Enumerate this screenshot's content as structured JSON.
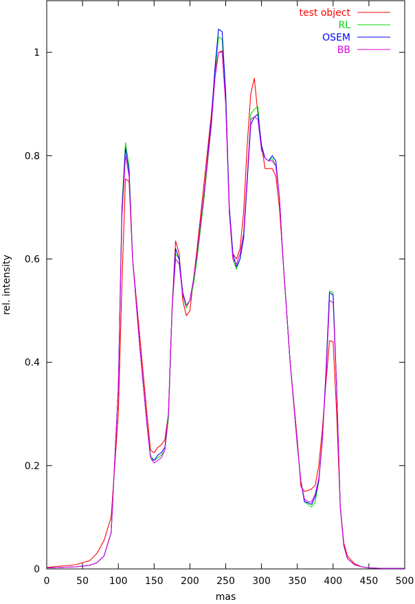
{
  "chart_data": {
    "type": "line",
    "title": "",
    "xlabel": "mas",
    "ylabel": "rel. intensity",
    "xlim": [
      0,
      500
    ],
    "ylim": [
      0,
      1.1
    ],
    "xticks": [
      0,
      50,
      100,
      150,
      200,
      250,
      300,
      350,
      400,
      450,
      500
    ],
    "yticks": [
      0,
      0.2,
      0.4,
      0.6,
      0.8,
      1
    ],
    "ytick_labels": [
      "0",
      "0.2",
      "0.4",
      "0.6",
      "0.8",
      "1"
    ],
    "grid": false,
    "legend_position": "top-right",
    "series": [
      {
        "name": "test object",
        "color": "#ff0000",
        "x": [
          0,
          40,
          60,
          70,
          80,
          90,
          100,
          105,
          110,
          115,
          120,
          130,
          140,
          145,
          150,
          155,
          160,
          165,
          170,
          175,
          180,
          185,
          190,
          195,
          200,
          205,
          210,
          220,
          230,
          235,
          240,
          245,
          250,
          255,
          260,
          265,
          270,
          275,
          280,
          285,
          290,
          295,
          300,
          305,
          310,
          315,
          320,
          325,
          330,
          340,
          350,
          355,
          360,
          365,
          370,
          375,
          380,
          385,
          390,
          395,
          400,
          405,
          410,
          415,
          420,
          430,
          440,
          450,
          470,
          500
        ],
        "y": [
          0.003,
          0.008,
          0.016,
          0.03,
          0.055,
          0.1,
          0.3,
          0.55,
          0.755,
          0.75,
          0.6,
          0.45,
          0.3,
          0.23,
          0.225,
          0.235,
          0.24,
          0.25,
          0.3,
          0.5,
          0.635,
          0.61,
          0.52,
          0.49,
          0.5,
          0.56,
          0.62,
          0.75,
          0.88,
          0.96,
          1.0,
          1.003,
          0.9,
          0.7,
          0.61,
          0.6,
          0.62,
          0.69,
          0.82,
          0.92,
          0.95,
          0.88,
          0.82,
          0.775,
          0.775,
          0.775,
          0.76,
          0.7,
          0.6,
          0.4,
          0.25,
          0.16,
          0.15,
          0.152,
          0.155,
          0.162,
          0.2,
          0.27,
          0.36,
          0.442,
          0.44,
          0.3,
          0.12,
          0.05,
          0.025,
          0.01,
          0.004,
          0.002,
          0.001,
          0.001
        ]
      },
      {
        "name": "RL",
        "color": "#00dd00",
        "x": [
          0,
          40,
          60,
          70,
          80,
          90,
          100,
          105,
          110,
          115,
          120,
          130,
          140,
          145,
          150,
          155,
          160,
          165,
          170,
          175,
          180,
          185,
          190,
          195,
          200,
          205,
          210,
          220,
          230,
          235,
          240,
          245,
          250,
          255,
          260,
          265,
          270,
          275,
          280,
          285,
          290,
          295,
          300,
          305,
          310,
          315,
          320,
          325,
          330,
          340,
          350,
          355,
          360,
          365,
          370,
          375,
          380,
          385,
          390,
          395,
          400,
          405,
          410,
          415,
          420,
          430,
          440,
          450,
          470,
          500
        ],
        "y": [
          0.002,
          0.004,
          0.007,
          0.012,
          0.025,
          0.07,
          0.35,
          0.7,
          0.825,
          0.78,
          0.6,
          0.43,
          0.28,
          0.22,
          0.21,
          0.215,
          0.22,
          0.23,
          0.29,
          0.5,
          0.61,
          0.6,
          0.53,
          0.505,
          0.52,
          0.55,
          0.6,
          0.72,
          0.86,
          0.96,
          1.03,
          1.025,
          0.92,
          0.7,
          0.6,
          0.58,
          0.6,
          0.64,
          0.75,
          0.88,
          0.89,
          0.895,
          0.81,
          0.795,
          0.79,
          0.795,
          0.78,
          0.72,
          0.6,
          0.4,
          0.24,
          0.17,
          0.13,
          0.125,
          0.12,
          0.13,
          0.17,
          0.25,
          0.38,
          0.538,
          0.535,
          0.35,
          0.12,
          0.045,
          0.02,
          0.008,
          0.004,
          0.002,
          0.001,
          0.001
        ]
      },
      {
        "name": "OSEM",
        "color": "#0000ff",
        "x": [
          0,
          40,
          60,
          70,
          80,
          90,
          100,
          105,
          110,
          115,
          120,
          130,
          140,
          145,
          150,
          155,
          160,
          165,
          170,
          175,
          180,
          185,
          190,
          195,
          200,
          205,
          210,
          220,
          230,
          235,
          240,
          245,
          250,
          255,
          260,
          265,
          270,
          275,
          280,
          285,
          290,
          295,
          300,
          305,
          310,
          315,
          320,
          325,
          330,
          340,
          350,
          355,
          360,
          365,
          370,
          375,
          380,
          385,
          390,
          395,
          400,
          405,
          410,
          415,
          420,
          430,
          440,
          450,
          470,
          500
        ],
        "y": [
          0.002,
          0.004,
          0.007,
          0.012,
          0.025,
          0.07,
          0.35,
          0.69,
          0.815,
          0.77,
          0.6,
          0.43,
          0.28,
          0.215,
          0.21,
          0.22,
          0.225,
          0.235,
          0.3,
          0.5,
          0.62,
          0.6,
          0.535,
          0.51,
          0.52,
          0.56,
          0.61,
          0.73,
          0.87,
          0.97,
          1.045,
          1.04,
          0.92,
          0.7,
          0.61,
          0.585,
          0.6,
          0.64,
          0.75,
          0.86,
          0.875,
          0.88,
          0.82,
          0.795,
          0.79,
          0.8,
          0.79,
          0.72,
          0.6,
          0.4,
          0.24,
          0.17,
          0.13,
          0.128,
          0.125,
          0.14,
          0.17,
          0.25,
          0.38,
          0.535,
          0.53,
          0.35,
          0.12,
          0.045,
          0.02,
          0.008,
          0.004,
          0.002,
          0.001,
          0.001
        ]
      },
      {
        "name": "BB",
        "color": "#dd00dd",
        "x": [
          0,
          40,
          60,
          70,
          80,
          90,
          100,
          105,
          110,
          115,
          120,
          130,
          140,
          145,
          150,
          155,
          160,
          165,
          170,
          175,
          180,
          185,
          190,
          195,
          200,
          205,
          210,
          220,
          230,
          235,
          240,
          245,
          250,
          255,
          260,
          265,
          270,
          275,
          280,
          285,
          290,
          295,
          300,
          305,
          310,
          315,
          320,
          325,
          330,
          340,
          350,
          355,
          360,
          365,
          370,
          375,
          380,
          385,
          390,
          395,
          400,
          405,
          410,
          415,
          420,
          430,
          440,
          450,
          470,
          500
        ],
        "y": [
          0.002,
          0.004,
          0.007,
          0.012,
          0.025,
          0.07,
          0.35,
          0.68,
          0.8,
          0.76,
          0.6,
          0.43,
          0.28,
          0.215,
          0.205,
          0.21,
          0.215,
          0.23,
          0.3,
          0.5,
          0.6,
          0.59,
          0.53,
          0.51,
          0.52,
          0.56,
          0.61,
          0.73,
          0.86,
          0.95,
          1.0,
          1.0,
          0.9,
          0.69,
          0.6,
          0.59,
          0.61,
          0.65,
          0.76,
          0.87,
          0.875,
          0.87,
          0.81,
          0.795,
          0.79,
          0.79,
          0.78,
          0.72,
          0.6,
          0.4,
          0.24,
          0.17,
          0.135,
          0.13,
          0.13,
          0.145,
          0.175,
          0.25,
          0.37,
          0.52,
          0.515,
          0.35,
          0.12,
          0.045,
          0.02,
          0.008,
          0.004,
          0.002,
          0.001,
          0.001
        ]
      }
    ]
  }
}
